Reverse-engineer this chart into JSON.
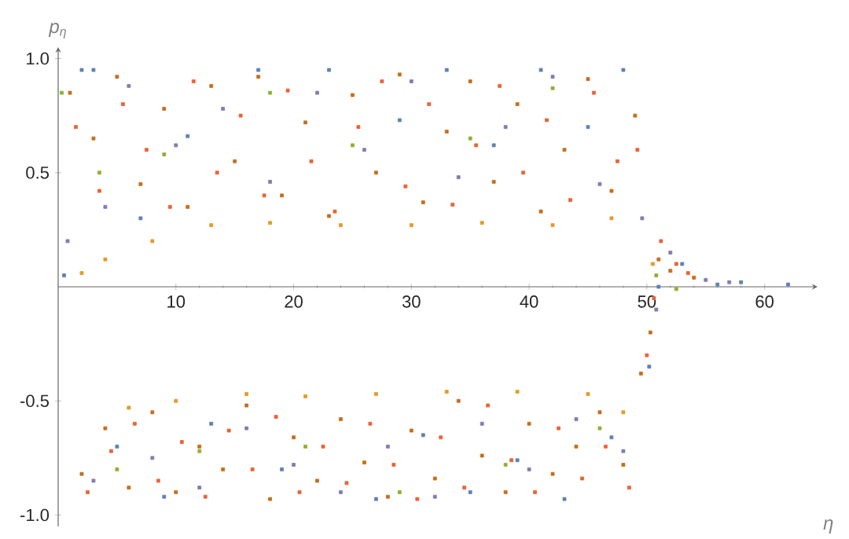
{
  "chart_data": {
    "type": "scatter",
    "xlabel": "η",
    "ylabel": "p$_{η}$",
    "marker": "square",
    "xlim": [
      0,
      64.5
    ],
    "ylim": [
      -1.05,
      1.05
    ],
    "xticks": [
      10,
      20,
      30,
      40,
      50,
      60
    ],
    "yticks": [
      {
        "value": -1,
        "label": "-1.0"
      },
      {
        "value": -0.5,
        "label": "-0.5"
      },
      {
        "value": 0.5,
        "label": "0.5"
      },
      {
        "value": 1,
        "label": "1.0"
      }
    ],
    "series": [
      {
        "color": "#c56e1a",
        "x": [
          1,
          2,
          3,
          4,
          5,
          6,
          7,
          8,
          9,
          10,
          11,
          12,
          13,
          14,
          15,
          16,
          17,
          18,
          19,
          20,
          21,
          22,
          23,
          24,
          25,
          26,
          27,
          28,
          29,
          30,
          31,
          32,
          33,
          34,
          35,
          36,
          37,
          38,
          39,
          40,
          41,
          42,
          43,
          44,
          45,
          46,
          47,
          48,
          49,
          49.5,
          50.3,
          51,
          52,
          54
        ],
        "values": [
          0.85,
          -0.82,
          0.65,
          -0.62,
          0.92,
          -0.88,
          0.45,
          -0.55,
          0.78,
          -0.9,
          0.35,
          -0.7,
          0.88,
          -0.8,
          0.55,
          -0.52,
          0.92,
          -0.93,
          0.4,
          -0.66,
          0.72,
          -0.85,
          0.31,
          -0.58,
          0.84,
          -0.77,
          0.5,
          -0.92,
          0.93,
          -0.63,
          0.37,
          -0.84,
          0.68,
          -0.5,
          0.9,
          -0.74,
          0.46,
          -0.9,
          0.8,
          -0.6,
          0.33,
          -0.82,
          0.6,
          -0.7,
          0.91,
          -0.55,
          0.42,
          -0.78,
          0.75,
          -0.38,
          -0.2,
          0.12,
          0.07,
          0.04
        ]
      },
      {
        "color": "#eb6235",
        "x": [
          1.5,
          2.5,
          3.5,
          4.5,
          5.5,
          6.5,
          7.5,
          8.5,
          9.5,
          10.5,
          11.5,
          12.5,
          13.5,
          14.5,
          15.5,
          16.5,
          17.5,
          18.5,
          19.5,
          20.5,
          21.5,
          22.5,
          23.5,
          24.5,
          25.5,
          26.5,
          27.5,
          28.5,
          29.5,
          30.5,
          31.5,
          32.5,
          33.5,
          34.5,
          35.5,
          36.5,
          37.5,
          38.5,
          39.5,
          40.5,
          41.5,
          42.5,
          43.5,
          44.5,
          45.5,
          46.5,
          47.5,
          48.5,
          49.2,
          50,
          50.6,
          51.2,
          52.5,
          53.5
        ],
        "values": [
          0.7,
          -0.9,
          0.42,
          -0.72,
          0.8,
          -0.6,
          0.6,
          -0.85,
          0.35,
          -0.68,
          0.9,
          -0.92,
          0.5,
          -0.63,
          0.75,
          -0.8,
          0.4,
          -0.57,
          0.86,
          -0.9,
          0.55,
          -0.7,
          0.33,
          -0.86,
          0.7,
          -0.6,
          0.9,
          -0.78,
          0.44,
          -0.93,
          0.8,
          -0.66,
          0.36,
          -0.88,
          0.62,
          -0.52,
          0.88,
          -0.76,
          0.5,
          -0.9,
          0.73,
          -0.62,
          0.38,
          -0.84,
          0.85,
          -0.7,
          0.55,
          -0.88,
          0.6,
          -0.3,
          -0.05,
          0.2,
          0.1,
          0.06
        ]
      },
      {
        "color": "#8778b3",
        "x": [
          0.8,
          3,
          4,
          6,
          8,
          10,
          12,
          14,
          16,
          18,
          20,
          22,
          24,
          26,
          28,
          30,
          32,
          34,
          36,
          38,
          40,
          42,
          44,
          46,
          48,
          49.6,
          50.8,
          52,
          55,
          57
        ],
        "values": [
          0.2,
          -0.85,
          0.35,
          0.88,
          -0.75,
          0.62,
          -0.88,
          0.78,
          -0.62,
          0.46,
          -0.78,
          0.85,
          -0.9,
          0.6,
          -0.7,
          0.9,
          -0.92,
          0.48,
          -0.6,
          0.7,
          -0.8,
          0.92,
          -0.58,
          0.45,
          -0.72,
          0.3,
          -0.1,
          0.15,
          0.03,
          0.02
        ]
      },
      {
        "color": "#5e81b5",
        "x": [
          0.5,
          2,
          3,
          5,
          7,
          9,
          11,
          13,
          17,
          19,
          23,
          27,
          29,
          31,
          33,
          35,
          37,
          39,
          41,
          43,
          45,
          47,
          48,
          50.2,
          51,
          53,
          56,
          58,
          62
        ],
        "values": [
          0.05,
          0.95,
          0.95,
          -0.7,
          0.3,
          -0.92,
          0.66,
          -0.6,
          0.95,
          -0.8,
          0.95,
          -0.93,
          0.73,
          -0.65,
          0.95,
          -0.9,
          0.62,
          -0.76,
          0.95,
          -0.93,
          0.7,
          -0.66,
          0.95,
          -0.35,
          0.0,
          0.1,
          0.01,
          0.02,
          0.01
        ]
      },
      {
        "color": "#e19c24",
        "x": [
          2,
          4,
          6,
          8,
          10,
          13,
          16,
          18,
          21,
          24,
          27,
          30,
          33,
          36,
          39,
          42,
          45,
          47,
          48,
          50.5
        ],
        "values": [
          0.06,
          0.12,
          -0.53,
          0.2,
          -0.5,
          0.27,
          -0.47,
          0.28,
          -0.48,
          0.27,
          -0.47,
          0.27,
          -0.46,
          0.28,
          -0.46,
          0.27,
          -0.47,
          0.3,
          -0.55,
          0.1
        ]
      },
      {
        "color": "#8fb032",
        "x": [
          0.3,
          3.5,
          5,
          9,
          12,
          18,
          21,
          25,
          29,
          35,
          38,
          42,
          46,
          50.8,
          52.5
        ],
        "values": [
          0.85,
          0.5,
          -0.8,
          0.58,
          -0.72,
          0.85,
          -0.7,
          0.62,
          -0.9,
          0.65,
          -0.78,
          0.87,
          -0.62,
          0.05,
          -0.01
        ]
      }
    ]
  }
}
